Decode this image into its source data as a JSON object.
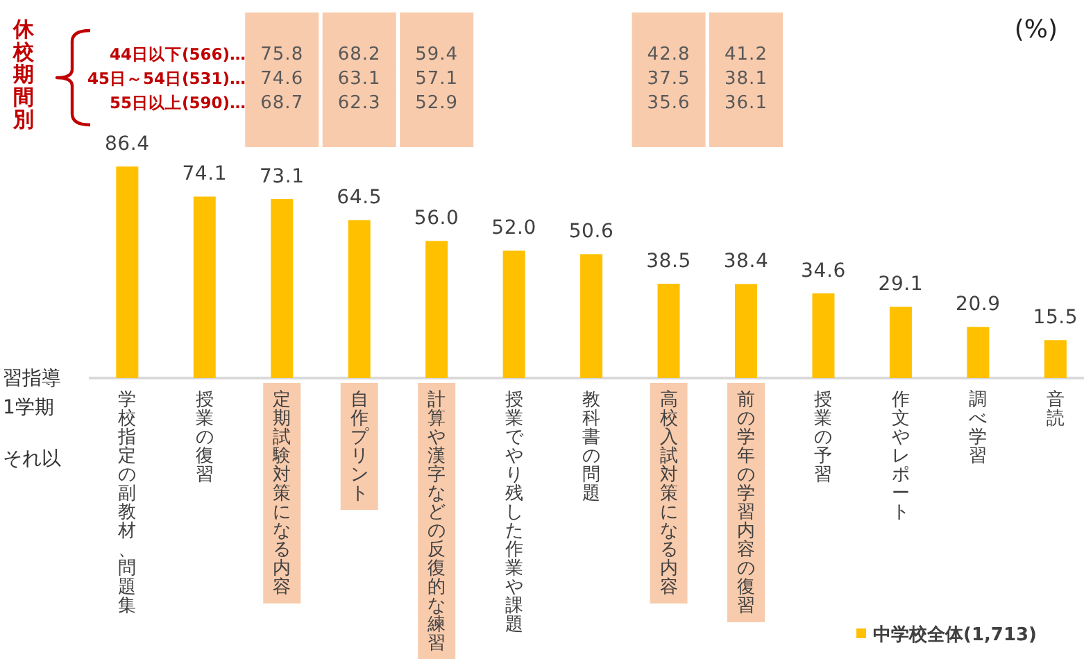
{
  "chart_data": [
    {
      "type": "bar",
      "categories": [
        "学校指定の副教材、問題集",
        "授業の復習",
        "定期試験対策になる内容",
        "自作プリント",
        "計算や漢字などの反復的な練習",
        "授業でやり残した作業や課題",
        "教科書の問題",
        "高校入試対策になる内容",
        "前の学年の学習内容の復習",
        "授業の予習",
        "作文やレポート",
        "調べ学習",
        "音読"
      ],
      "series": [
        {
          "name": "中学校全体(1,713)",
          "color": "#ffc000",
          "values": [
            86.4,
            74.1,
            73.1,
            64.5,
            56.0,
            52.0,
            50.6,
            38.5,
            38.4,
            34.6,
            29.1,
            20.9,
            15.5
          ],
          "value_labels": [
            "86.4",
            "74.1",
            "73.1",
            "64.5",
            "56.0",
            "52.0",
            "50.6",
            "38.5",
            "38.4",
            "34.6",
            "29.1",
            "20.9",
            "15.5"
          ]
        }
      ],
      "legend": "bottom right",
      "annotations": [
        "(%)",
        "習指導",
        "1学期",
        "それ以"
      ]
    },
    {
      "type": "heatmap",
      "ylabel": "休校期間別",
      "categories": [
        null,
        null,
        null,
        null,
        null,
        null,
        null,
        null,
        null,
        null,
        null,
        null,
        null
      ],
      "y_categories": [
        "44日以下(566)…",
        "45日～54日(531)…",
        "55日以上(590)…"
      ],
      "cells": [
        [
          null,
          null,
          75.8,
          68.2,
          59.4,
          null,
          null,
          42.8,
          41.2,
          null,
          null,
          null,
          null
        ],
        [
          null,
          null,
          74.6,
          63.1,
          57.1,
          null,
          null,
          37.5,
          38.1,
          null,
          null,
          null,
          null
        ],
        [
          null,
          null,
          68.7,
          62.3,
          52.9,
          null,
          null,
          35.6,
          36.1,
          null,
          null,
          null,
          null
        ]
      ],
      "data_labels": true
    }
  ]
}
